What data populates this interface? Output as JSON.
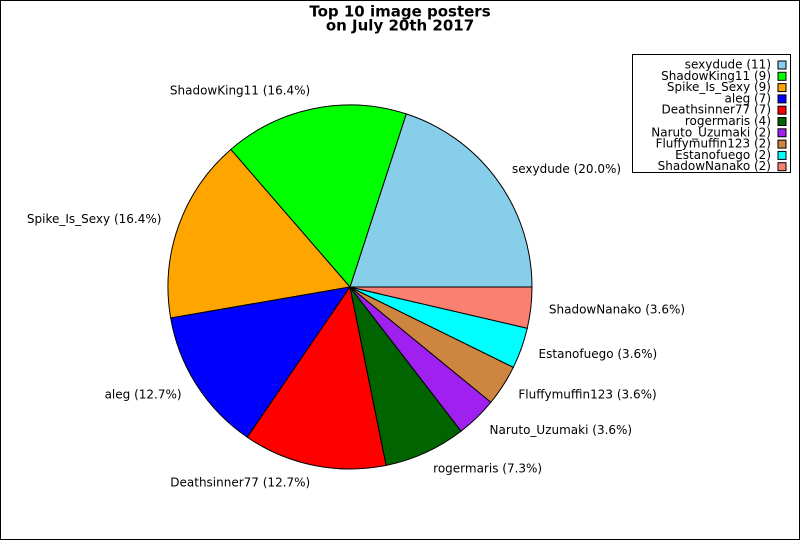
{
  "chart_data": {
    "type": "pie",
    "title_lines": [
      "Top 10 image posters",
      "on July 20th 2017"
    ],
    "values": [
      11,
      9,
      9,
      7,
      7,
      4,
      2,
      2,
      2,
      2
    ],
    "slice_labels": [
      "sexydude (20.0%)",
      "ShadowKing11 (16.4%)",
      "Spike_Is_Sexy (16.4%)",
      "aleg (12.7%)",
      "Deathsinner77 (12.7%)",
      "rogermaris (7.3%)",
      "Naruto_Uzumaki (3.6%)",
      "Fluffymuffin123 (3.6%)",
      "Estanofuego (3.6%)",
      "ShadowNanako (3.6%)"
    ],
    "legend_labels": [
      "sexydude (11)",
      "ShadowKing11 (9)",
      "Spike_Is_Sexy (9)",
      "aleg (7)",
      "Deathsinner77 (7)",
      "rogermaris (4)",
      "Naruto_Uzumaki (2)",
      "Fluffymuffin123 (2)",
      "Estanofuego (2)",
      "ShadowNanako (2)"
    ],
    "colors": [
      "#87ceeb",
      "#00ff00",
      "#ffa500",
      "#0000ff",
      "#ff0000",
      "#006400",
      "#a020f0",
      "#cd853f",
      "#00ffff",
      "#fa8072"
    ],
    "legend_position": "upper right"
  }
}
